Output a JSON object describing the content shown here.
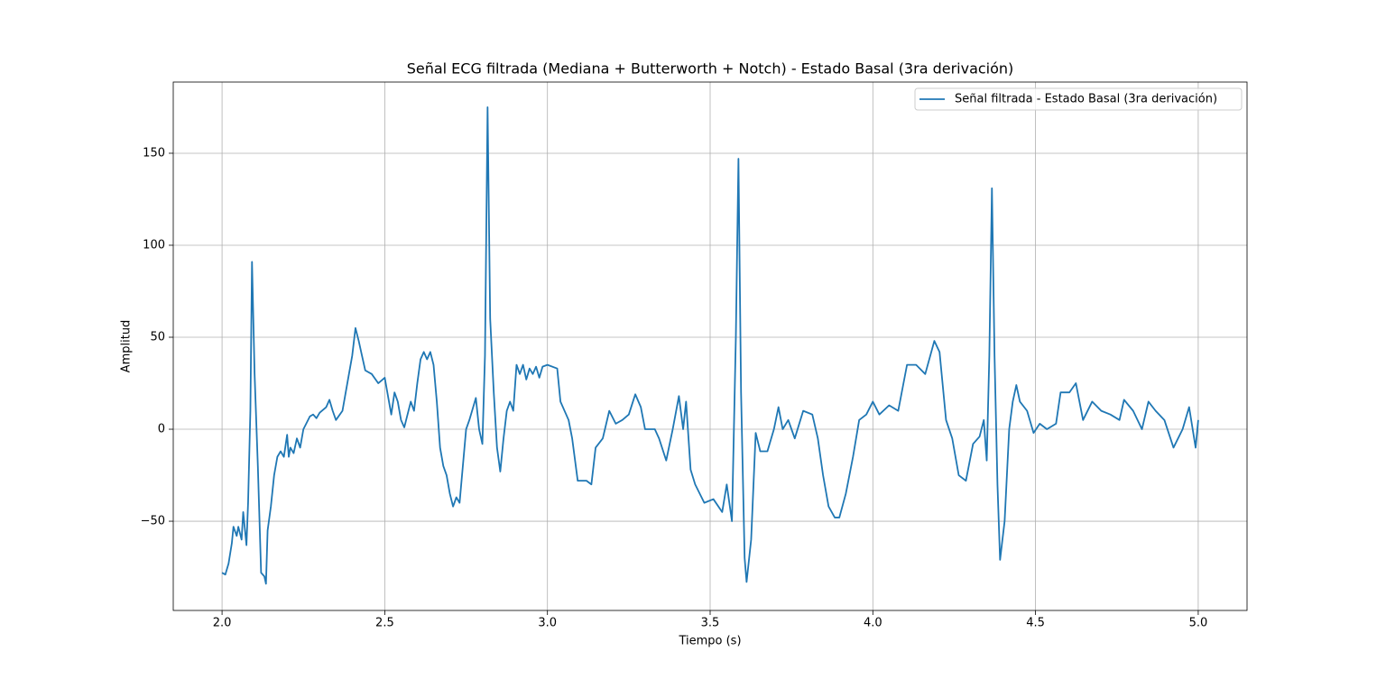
{
  "chart_data": {
    "type": "line",
    "title": "Señal ECG filtrada (Mediana + Butterworth + Notch) - Estado Basal (3ra derivación)",
    "xlabel": "Tiempo (s)",
    "ylabel": "Amplitud",
    "x": [
      2.0,
      2.01,
      2.02,
      2.03,
      2.035,
      2.045,
      2.05,
      2.06,
      2.065,
      2.075,
      2.08,
      2.087,
      2.092,
      2.1,
      2.11,
      2.12,
      2.13,
      2.135,
      2.14,
      2.15,
      2.16,
      2.17,
      2.18,
      2.19,
      2.2,
      2.205,
      2.21,
      2.22,
      2.23,
      2.24,
      2.25,
      2.27,
      2.28,
      2.29,
      2.3,
      2.32,
      2.33,
      2.34,
      2.35,
      2.37,
      2.38,
      2.4,
      2.41,
      2.42,
      2.43,
      2.44,
      2.46,
      2.48,
      2.5,
      2.51,
      2.52,
      2.53,
      2.54,
      2.55,
      2.56,
      2.57,
      2.58,
      2.59,
      2.6,
      2.61,
      2.62,
      2.63,
      2.64,
      2.65,
      2.66,
      2.67,
      2.68,
      2.69,
      2.7,
      2.71,
      2.72,
      2.73,
      2.74,
      2.75,
      2.76,
      2.78,
      2.79,
      2.8,
      2.808,
      2.816,
      2.824,
      2.835,
      2.845,
      2.855,
      2.865,
      2.875,
      2.885,
      2.895,
      2.905,
      2.915,
      2.925,
      2.935,
      2.945,
      2.955,
      2.965,
      2.975,
      2.985,
      3.0,
      3.03,
      3.04,
      3.065,
      3.076,
      3.093,
      3.12,
      3.135,
      3.148,
      3.17,
      3.19,
      3.21,
      3.23,
      3.25,
      3.27,
      3.287,
      3.3,
      3.33,
      3.343,
      3.365,
      3.385,
      3.404,
      3.417,
      3.426,
      3.44,
      3.454,
      3.482,
      3.51,
      3.537,
      3.551,
      3.567,
      3.579,
      3.587,
      3.595,
      3.606,
      3.612,
      3.626,
      3.64,
      3.654,
      3.676,
      3.696,
      3.71,
      3.723,
      3.74,
      3.76,
      3.786,
      3.814,
      3.831,
      3.847,
      3.864,
      3.883,
      3.897,
      3.917,
      3.939,
      3.958,
      3.98,
      4.0,
      4.02,
      4.05,
      4.078,
      4.105,
      4.133,
      4.161,
      4.189,
      4.205,
      4.225,
      4.244,
      4.264,
      4.286,
      4.308,
      4.328,
      4.341,
      4.35,
      4.358,
      4.366,
      4.374,
      4.383,
      4.391,
      4.405,
      4.419,
      4.43,
      4.441,
      4.452,
      4.474,
      4.494,
      4.513,
      4.535,
      4.563,
      4.577,
      4.604,
      4.624,
      4.646,
      4.674,
      4.702,
      4.73,
      4.758,
      4.772,
      4.8,
      4.827,
      4.847,
      4.869,
      4.896,
      4.924,
      4.952,
      4.972,
      4.992,
      5.0
    ],
    "series": [
      {
        "name": "Señal filtrada - Estado Basal (3ra derivación)",
        "color": "#1f77b4",
        "values": [
          -78,
          -79,
          -73,
          -62,
          -53,
          -58,
          -53,
          -60,
          -45,
          -63,
          -40,
          10,
          91,
          30,
          -20,
          -78,
          -80,
          -84,
          -55,
          -42,
          -25,
          -15,
          -12,
          -15,
          -3,
          -15,
          -10,
          -13,
          -5,
          -10,
          0,
          7,
          8,
          6,
          9,
          12,
          16,
          10,
          5,
          10,
          20,
          40,
          55,
          48,
          40,
          32,
          30,
          25,
          28,
          18,
          8,
          20,
          15,
          5,
          1,
          8,
          15,
          10,
          25,
          38,
          42,
          38,
          42,
          35,
          15,
          -10,
          -20,
          -25,
          -35,
          -42,
          -37,
          -40,
          -20,
          0,
          5,
          17,
          0,
          -8,
          40,
          175,
          60,
          20,
          -10,
          -23,
          -5,
          10,
          15,
          10,
          35,
          30,
          35,
          27,
          33,
          30,
          34,
          28,
          34,
          35,
          33,
          15,
          5,
          -5,
          -28,
          -28,
          -30,
          -10,
          -5,
          10,
          3,
          5,
          8,
          19,
          12,
          0,
          0,
          -5,
          -17,
          0,
          18,
          0,
          15,
          -22,
          -30,
          -40,
          -38,
          -45,
          -30,
          -50,
          50,
          147,
          20,
          -70,
          -83,
          -60,
          -2,
          -12,
          -12,
          0,
          12,
          0,
          5,
          -5,
          10,
          8,
          -5,
          -25,
          -42,
          -48,
          -48,
          -35,
          -15,
          5,
          8,
          15,
          8,
          13,
          10,
          35,
          35,
          30,
          48,
          42,
          5,
          -5,
          -25,
          -28,
          -8,
          -4,
          5,
          -17,
          40,
          131,
          40,
          -30,
          -71,
          -50,
          0,
          15,
          24,
          15,
          10,
          -2,
          3,
          0,
          3,
          20,
          20,
          25,
          5,
          15,
          10,
          8,
          5,
          16,
          10,
          0,
          15,
          10,
          5,
          -10,
          0,
          12,
          -10,
          5
        ]
      }
    ],
    "xlim": [
      1.85,
      5.15
    ],
    "ylim": [
      -98.5,
      188.7
    ],
    "xticks": [
      {
        "value": 2,
        "label": "2.0"
      },
      2.5,
      {
        "value": 3,
        "label": "3.0"
      },
      3.5,
      {
        "value": 4,
        "label": "4.0"
      },
      4.5,
      {
        "value": 5,
        "label": "5.0"
      }
    ],
    "yticks": [
      {
        "value": -50,
        "label": "−50"
      },
      0,
      50,
      100,
      150
    ],
    "grid": true,
    "legend": "upper right"
  }
}
